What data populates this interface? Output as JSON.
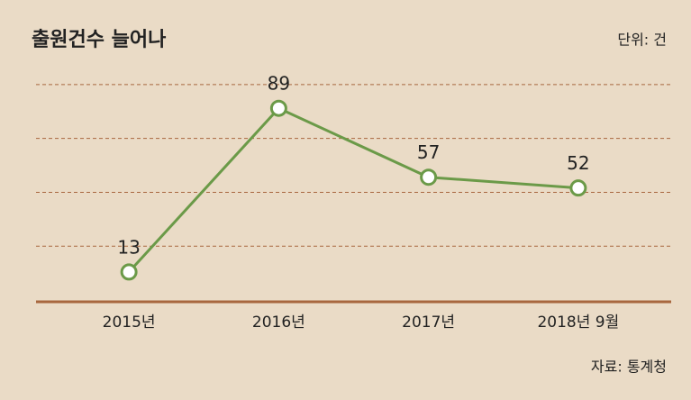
{
  "chart_data": {
    "type": "line",
    "title": "출원건수 늘어나",
    "unit_note": "단위: 건",
    "source": "자료: 통계청",
    "categories": [
      "2015년",
      "2016년",
      "2017년",
      "2018년 9월"
    ],
    "values": [
      13,
      89,
      57,
      52
    ],
    "color": "#6b9a48",
    "ylim": [
      0,
      110
    ],
    "yticks": [
      0,
      25,
      50,
      75,
      100
    ],
    "grid": true
  }
}
